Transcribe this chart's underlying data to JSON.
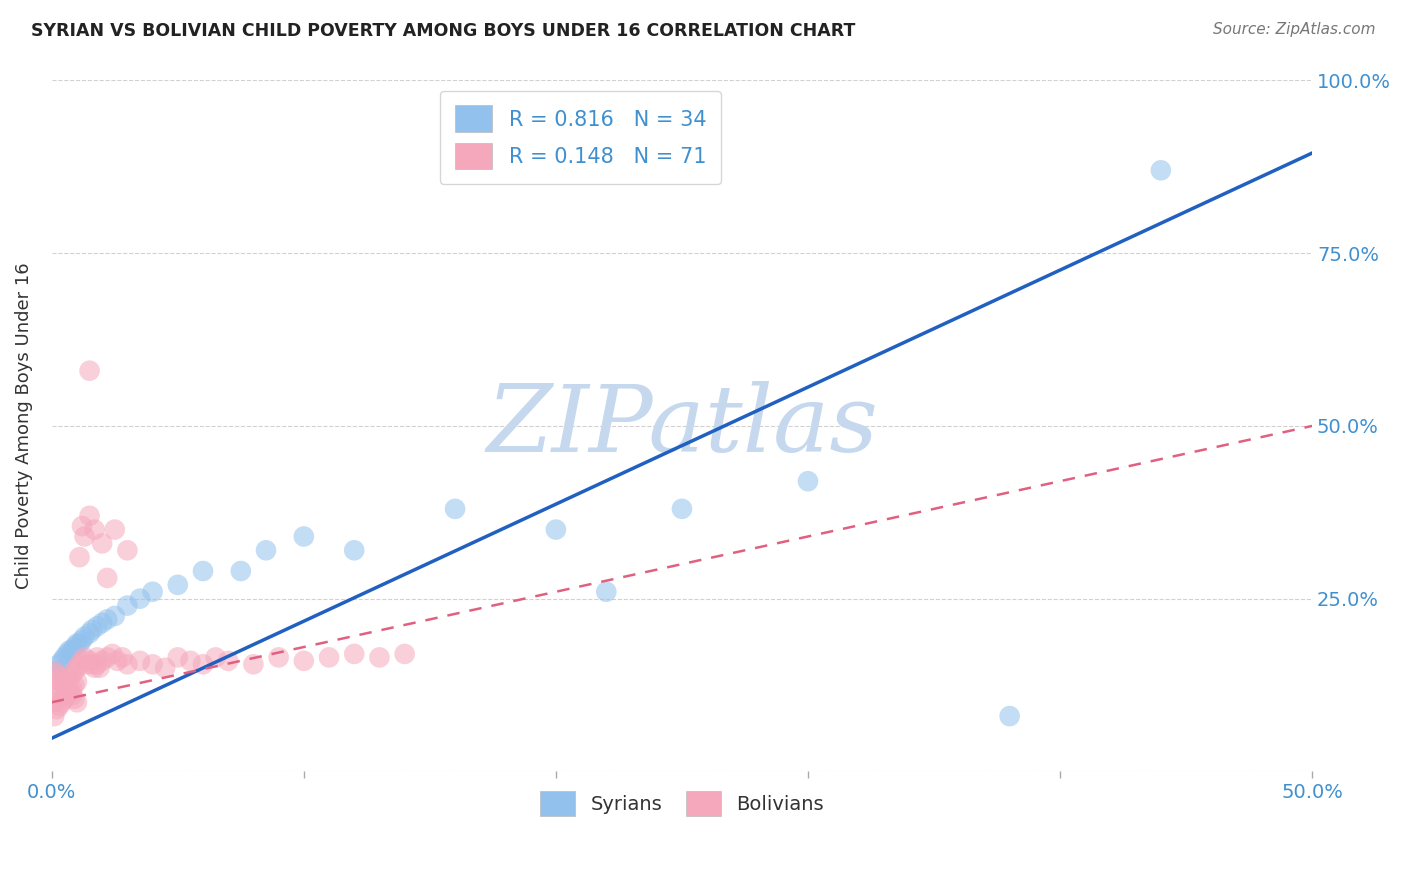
{
  "title": "SYRIAN VS BOLIVIAN CHILD POVERTY AMONG BOYS UNDER 16 CORRELATION CHART",
  "source": "Source: ZipAtlas.com",
  "ylabel": "Child Poverty Among Boys Under 16",
  "xlim": [
    0,
    0.5
  ],
  "ylim": [
    0,
    1.0
  ],
  "xtick_positions": [
    0.0,
    0.1,
    0.2,
    0.3,
    0.4,
    0.5
  ],
  "xtick_labels": [
    "0.0%",
    "",
    "",
    "",
    "",
    "50.0%"
  ],
  "ytick_positions": [
    0.0,
    0.25,
    0.5,
    0.75,
    1.0
  ],
  "ytick_labels": [
    "",
    "25.0%",
    "50.0%",
    "75.0%",
    "100.0%"
  ],
  "syrians_R": "0.816",
  "syrians_N": "34",
  "bolivians_R": "0.148",
  "bolivians_N": "71",
  "syrians_color": "#92C1ED",
  "bolivians_color": "#F5A8BC",
  "syrians_line_color": "#2060C0",
  "bolivians_line_color": "#E06080",
  "watermark_text": "ZIPatlas",
  "watermark_color": "#C5D8EE",
  "background_color": "#FFFFFF",
  "grid_color": "#CCCCCC",
  "tick_label_color": "#4090D0",
  "title_color": "#222222",
  "source_color": "#777777",
  "ylabel_color": "#333333",
  "syr_line_x0": 0.0,
  "syr_line_y0": 0.048,
  "syr_line_x1": 0.5,
  "syr_line_y1": 0.895,
  "bol_line_x0": 0.0,
  "bol_line_y0": 0.1,
  "bol_line_x1": 0.5,
  "bol_line_y1": 0.5,
  "syrians_x": [
    0.002,
    0.003,
    0.004,
    0.005,
    0.006,
    0.007,
    0.008,
    0.009,
    0.01,
    0.011,
    0.012,
    0.013,
    0.015,
    0.016,
    0.018,
    0.02,
    0.022,
    0.025,
    0.03,
    0.035,
    0.04,
    0.05,
    0.06,
    0.075,
    0.085,
    0.1,
    0.12,
    0.16,
    0.2,
    0.22,
    0.25,
    0.3,
    0.38,
    0.44
  ],
  "syrians_y": [
    0.145,
    0.155,
    0.16,
    0.165,
    0.17,
    0.175,
    0.175,
    0.18,
    0.185,
    0.185,
    0.19,
    0.195,
    0.2,
    0.205,
    0.21,
    0.215,
    0.22,
    0.225,
    0.24,
    0.25,
    0.26,
    0.27,
    0.29,
    0.29,
    0.32,
    0.34,
    0.32,
    0.38,
    0.35,
    0.26,
    0.38,
    0.42,
    0.08,
    0.87
  ],
  "bolivians_x": [
    0.001,
    0.001,
    0.002,
    0.002,
    0.003,
    0.003,
    0.004,
    0.004,
    0.005,
    0.005,
    0.006,
    0.006,
    0.007,
    0.007,
    0.008,
    0.008,
    0.009,
    0.009,
    0.01,
    0.01,
    0.011,
    0.012,
    0.013,
    0.014,
    0.015,
    0.016,
    0.017,
    0.018,
    0.019,
    0.02,
    0.022,
    0.024,
    0.026,
    0.028,
    0.03,
    0.035,
    0.04,
    0.045,
    0.05,
    0.055,
    0.06,
    0.065,
    0.07,
    0.08,
    0.09,
    0.1,
    0.11,
    0.12,
    0.13,
    0.14,
    0.001,
    0.002,
    0.003,
    0.004,
    0.005,
    0.006,
    0.007,
    0.008,
    0.009,
    0.01,
    0.011,
    0.012,
    0.013,
    0.015,
    0.017,
    0.02,
    0.025,
    0.03,
    0.015,
    0.018,
    0.022
  ],
  "bolivians_y": [
    0.08,
    0.1,
    0.09,
    0.11,
    0.095,
    0.115,
    0.1,
    0.12,
    0.105,
    0.125,
    0.11,
    0.13,
    0.115,
    0.135,
    0.12,
    0.14,
    0.125,
    0.145,
    0.13,
    0.15,
    0.155,
    0.16,
    0.165,
    0.155,
    0.16,
    0.155,
    0.15,
    0.155,
    0.15,
    0.16,
    0.165,
    0.17,
    0.16,
    0.165,
    0.155,
    0.16,
    0.155,
    0.15,
    0.165,
    0.16,
    0.155,
    0.165,
    0.16,
    0.155,
    0.165,
    0.16,
    0.165,
    0.17,
    0.165,
    0.17,
    0.145,
    0.14,
    0.135,
    0.13,
    0.125,
    0.12,
    0.115,
    0.11,
    0.105,
    0.1,
    0.31,
    0.355,
    0.34,
    0.37,
    0.35,
    0.33,
    0.35,
    0.32,
    0.58,
    0.165,
    0.28
  ]
}
